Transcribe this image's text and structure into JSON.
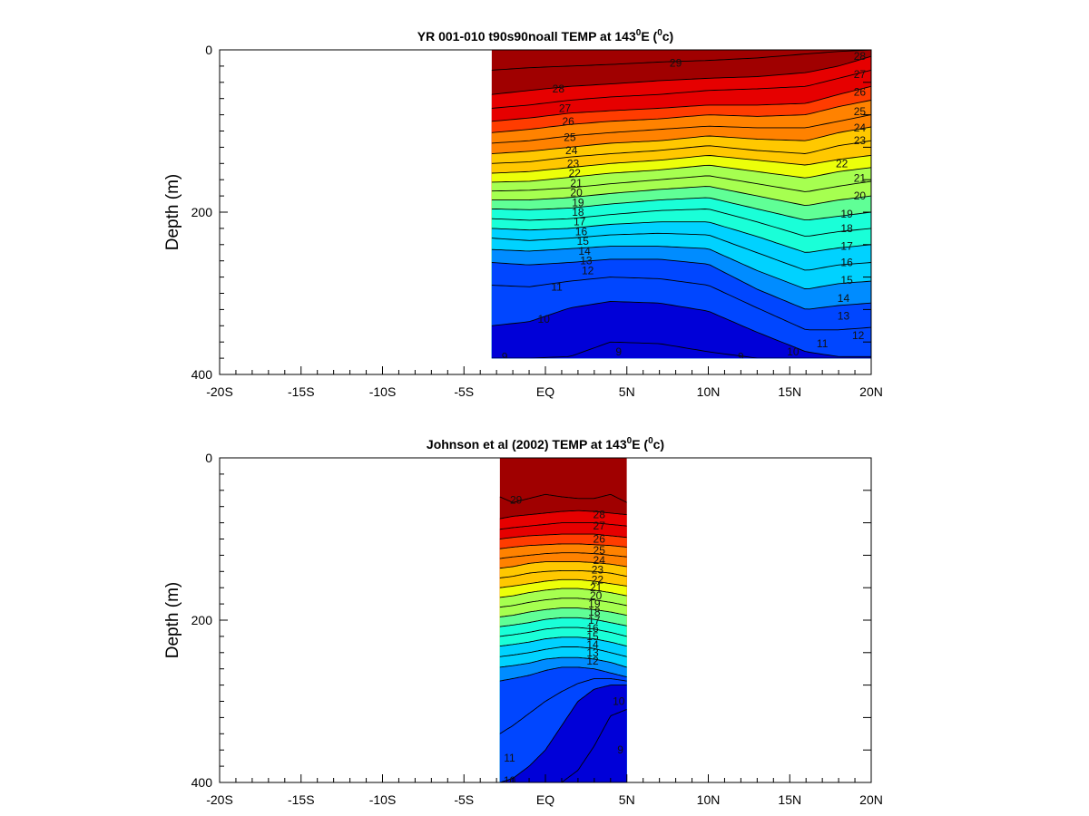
{
  "colors": {
    "scale": [
      "#0000d8",
      "#0046ff",
      "#008cff",
      "#00d2ff",
      "#1affd8",
      "#60ff96",
      "#a6ff50",
      "#ecff0a",
      "#ffc800",
      "#ff8200",
      "#ff3c00",
      "#e60000",
      "#a00000"
    ],
    "contour": "#000000"
  },
  "chart_data": [
    {
      "type": "heatmap",
      "title_main": "YR 001-010 t90s90noall TEMP at 143",
      "title_sup1": "0",
      "title_mid": "E (",
      "title_sup2": "0",
      "title_end": "c)",
      "xlabel": "",
      "ylabel": "Depth (m)",
      "x_ticks": [
        -20,
        -15,
        -10,
        -5,
        0,
        5,
        10,
        15,
        20
      ],
      "x_tick_labels": [
        "-20S",
        "-15S",
        "-10S",
        "-5S",
        "EQ",
        "5N",
        "10N",
        "15N",
        "20N"
      ],
      "y_ticks": [
        0,
        200,
        400
      ],
      "y_tick_labels": [
        "0",
        "200",
        "400"
      ],
      "xlim": [
        -20,
        20
      ],
      "ylim": [
        400,
        0
      ],
      "data_extent": {
        "lat": [
          -3.3,
          20
        ],
        "depth": [
          0,
          380
        ]
      },
      "profile_lats": [
        -3.3,
        -1,
        1.5,
        4,
        7,
        10,
        13,
        16,
        18,
        20
      ],
      "isotherms": [
        {
          "temp": 29,
          "depth": [
            25,
            22,
            20,
            18,
            15,
            13,
            10,
            5,
            2,
            0
          ]
        },
        {
          "temp": 28,
          "depth": [
            55,
            50,
            45,
            42,
            38,
            35,
            33,
            28,
            20,
            8
          ]
        },
        {
          "temp": 27,
          "depth": [
            72,
            68,
            62,
            58,
            55,
            50,
            48,
            45,
            35,
            25
          ]
        },
        {
          "temp": 26,
          "depth": [
            88,
            84,
            78,
            75,
            72,
            68,
            68,
            66,
            55,
            45
          ]
        },
        {
          "temp": 25,
          "depth": [
            102,
            98,
            92,
            88,
            85,
            80,
            82,
            80,
            70,
            62
          ]
        },
        {
          "temp": 24,
          "depth": [
            115,
            112,
            106,
            102,
            98,
            94,
            96,
            96,
            88,
            80
          ]
        },
        {
          "temp": 23,
          "depth": [
            128,
            125,
            120,
            115,
            112,
            106,
            110,
            112,
            102,
            95
          ]
        },
        {
          "temp": 22,
          "depth": [
            140,
            138,
            132,
            128,
            124,
            118,
            124,
            128,
            118,
            112
          ]
        },
        {
          "temp": 21,
          "depth": [
            152,
            150,
            145,
            140,
            136,
            130,
            136,
            142,
            135,
            130
          ]
        },
        {
          "temp": 20,
          "depth": [
            163,
            162,
            157,
            152,
            148,
            142,
            150,
            158,
            150,
            145
          ]
        },
        {
          "temp": 19,
          "depth": [
            174,
            173,
            170,
            165,
            160,
            155,
            165,
            175,
            168,
            162
          ]
        },
        {
          "temp": 18,
          "depth": [
            185,
            185,
            182,
            177,
            172,
            168,
            180,
            192,
            185,
            180
          ]
        },
        {
          "temp": 17,
          "depth": [
            196,
            197,
            195,
            190,
            185,
            182,
            196,
            210,
            205,
            200
          ]
        },
        {
          "temp": 16,
          "depth": [
            208,
            210,
            208,
            203,
            198,
            196,
            212,
            230,
            224,
            220
          ]
        },
        {
          "temp": 15,
          "depth": [
            220,
            222,
            220,
            215,
            212,
            212,
            230,
            250,
            244,
            240
          ]
        },
        {
          "temp": 14,
          "depth": [
            232,
            235,
            232,
            228,
            226,
            228,
            250,
            272,
            265,
            262
          ]
        },
        {
          "temp": 13,
          "depth": [
            246,
            248,
            245,
            242,
            242,
            245,
            272,
            295,
            288,
            285
          ]
        },
        {
          "temp": 12,
          "depth": [
            262,
            265,
            262,
            258,
            258,
            264,
            295,
            320,
            315,
            312
          ]
        },
        {
          "temp": 11,
          "depth": [
            290,
            292,
            285,
            280,
            282,
            290,
            318,
            345,
            345,
            342
          ]
        },
        {
          "temp": 10,
          "depth": [
            340,
            335,
            318,
            310,
            312,
            322,
            348,
            372,
            378,
            378
          ]
        },
        {
          "temp": 9,
          "depth": [
            380,
            380,
            378,
            360,
            362,
            372,
            380,
            380,
            380,
            380
          ]
        }
      ],
      "contour_labels": [
        {
          "text": "29",
          "lat": 8,
          "depth": 16
        },
        {
          "text": "28",
          "lat": 19.3,
          "depth": 8
        },
        {
          "text": "27",
          "lat": 19.3,
          "depth": 30
        },
        {
          "text": "26",
          "lat": 19.3,
          "depth": 52
        },
        {
          "text": "25",
          "lat": 19.3,
          "depth": 76
        },
        {
          "text": "24",
          "lat": 19.3,
          "depth": 96
        },
        {
          "text": "23",
          "lat": 19.3,
          "depth": 112
        },
        {
          "text": "22",
          "lat": 18.2,
          "depth": 140
        },
        {
          "text": "21",
          "lat": 19.3,
          "depth": 158
        },
        {
          "text": "20",
          "lat": 19.3,
          "depth": 180
        },
        {
          "text": "19",
          "lat": 18.5,
          "depth": 202
        },
        {
          "text": "18",
          "lat": 18.5,
          "depth": 220
        },
        {
          "text": "17",
          "lat": 18.5,
          "depth": 242
        },
        {
          "text": "16",
          "lat": 18.5,
          "depth": 262
        },
        {
          "text": "15",
          "lat": 18.5,
          "depth": 284
        },
        {
          "text": "14",
          "lat": 18.3,
          "depth": 306
        },
        {
          "text": "13",
          "lat": 18.3,
          "depth": 328
        },
        {
          "text": "12",
          "lat": 19.2,
          "depth": 352
        },
        {
          "text": "11",
          "lat": 17.0,
          "depth": 362
        },
        {
          "text": "10",
          "lat": 15.2,
          "depth": 372
        },
        {
          "text": "9",
          "lat": 12.0,
          "depth": 378
        },
        {
          "text": "28",
          "lat": 0.8,
          "depth": 48
        },
        {
          "text": "27",
          "lat": 1.2,
          "depth": 72
        },
        {
          "text": "26",
          "lat": 1.4,
          "depth": 88
        },
        {
          "text": "25",
          "lat": 1.5,
          "depth": 108
        },
        {
          "text": "24",
          "lat": 1.6,
          "depth": 124
        },
        {
          "text": "23",
          "lat": 1.7,
          "depth": 140
        },
        {
          "text": "22",
          "lat": 1.8,
          "depth": 152
        },
        {
          "text": "21",
          "lat": 1.9,
          "depth": 164
        },
        {
          "text": "20",
          "lat": 1.9,
          "depth": 176
        },
        {
          "text": "19",
          "lat": 2.0,
          "depth": 188
        },
        {
          "text": "18",
          "lat": 2.0,
          "depth": 200
        },
        {
          "text": "17",
          "lat": 2.1,
          "depth": 212
        },
        {
          "text": "16",
          "lat": 2.2,
          "depth": 224
        },
        {
          "text": "15",
          "lat": 2.3,
          "depth": 236
        },
        {
          "text": "14",
          "lat": 2.4,
          "depth": 248
        },
        {
          "text": "13",
          "lat": 2.5,
          "depth": 260
        },
        {
          "text": "12",
          "lat": 2.6,
          "depth": 272
        },
        {
          "text": "11",
          "lat": 0.7,
          "depth": 292
        },
        {
          "text": "10",
          "lat": -0.1,
          "depth": 332
        },
        {
          "text": "9",
          "lat": 4.5,
          "depth": 372
        },
        {
          "text": "9",
          "lat": -2.5,
          "depth": 378
        }
      ]
    },
    {
      "type": "heatmap",
      "title_main": "Johnson et al (2002) TEMP at 143",
      "title_sup1": "0",
      "title_mid": "E (",
      "title_sup2": "0",
      "title_end": "c)",
      "xlabel": "",
      "ylabel": "Depth (m)",
      "x_ticks": [
        -20,
        -15,
        -10,
        -5,
        0,
        5,
        10,
        15,
        20
      ],
      "x_tick_labels": [
        "-20S",
        "-15S",
        "-10S",
        "-5S",
        "EQ",
        "5N",
        "10N",
        "15N",
        "20N"
      ],
      "y_ticks": [
        0,
        200,
        400
      ],
      "y_tick_labels": [
        "0",
        "200",
        "400"
      ],
      "xlim": [
        -20,
        20
      ],
      "ylim": [
        400,
        0
      ],
      "data_extent": {
        "lat": [
          -2.8,
          5
        ],
        "depth": [
          0,
          400
        ]
      },
      "profile_lats": [
        -2.8,
        -2,
        -1,
        0,
        1,
        2,
        3,
        4,
        5
      ],
      "isotherms": [
        {
          "temp": 29,
          "depth": [
            48,
            55,
            50,
            45,
            48,
            50,
            50,
            45,
            55
          ]
        },
        {
          "temp": 28,
          "depth": [
            75,
            72,
            70,
            68,
            66,
            65,
            66,
            68,
            70
          ]
        },
        {
          "temp": 27,
          "depth": [
            88,
            86,
            84,
            82,
            80,
            80,
            80,
            82,
            84
          ]
        },
        {
          "temp": 26,
          "depth": [
            100,
            98,
            96,
            95,
            94,
            94,
            94,
            96,
            98
          ]
        },
        {
          "temp": 25,
          "depth": [
            112,
            110,
            108,
            107,
            106,
            106,
            107,
            108,
            110
          ]
        },
        {
          "temp": 24,
          "depth": [
            124,
            122,
            120,
            118,
            117,
            117,
            118,
            120,
            122
          ]
        },
        {
          "temp": 23,
          "depth": [
            136,
            134,
            130,
            128,
            128,
            128,
            129,
            131,
            134
          ]
        },
        {
          "temp": 22,
          "depth": [
            148,
            146,
            142,
            140,
            139,
            139,
            140,
            142,
            146
          ]
        },
        {
          "temp": 21,
          "depth": [
            160,
            158,
            155,
            152,
            150,
            150,
            152,
            155,
            158
          ]
        },
        {
          "temp": 20,
          "depth": [
            172,
            170,
            166,
            163,
            161,
            161,
            163,
            166,
            170
          ]
        },
        {
          "temp": 19,
          "depth": [
            184,
            182,
            178,
            175,
            173,
            173,
            175,
            178,
            182
          ]
        },
        {
          "temp": 18,
          "depth": [
            196,
            194,
            190,
            187,
            185,
            185,
            187,
            190,
            194
          ]
        },
        {
          "temp": 17,
          "depth": [
            208,
            206,
            203,
            199,
            197,
            197,
            199,
            203,
            207
          ]
        },
        {
          "temp": 16,
          "depth": [
            220,
            218,
            215,
            211,
            209,
            209,
            211,
            215,
            220
          ]
        },
        {
          "temp": 15,
          "depth": [
            232,
            230,
            227,
            223,
            221,
            221,
            223,
            227,
            232
          ]
        },
        {
          "temp": 14,
          "depth": [
            245,
            243,
            240,
            236,
            233,
            233,
            235,
            240,
            245
          ]
        },
        {
          "temp": 13,
          "depth": [
            258,
            256,
            253,
            248,
            246,
            246,
            248,
            252,
            258
          ]
        },
        {
          "temp": 12,
          "depth": [
            275,
            272,
            268,
            262,
            258,
            258,
            260,
            265,
            270
          ]
        },
        {
          "temp": 11,
          "depth": [
            340,
            330,
            315,
            300,
            288,
            278,
            272,
            272,
            275
          ]
        },
        {
          "temp": 10,
          "depth": [
            400,
            395,
            380,
            360,
            330,
            300,
            285,
            280,
            280
          ]
        },
        {
          "temp": 9,
          "depth": [
            400,
            400,
            400,
            400,
            400,
            385,
            355,
            318,
            310
          ]
        }
      ],
      "contour_labels": [
        {
          "text": "29",
          "lat": -1.8,
          "depth": 52
        },
        {
          "text": "28",
          "lat": 3.3,
          "depth": 70
        },
        {
          "text": "27",
          "lat": 3.3,
          "depth": 84
        },
        {
          "text": "26",
          "lat": 3.3,
          "depth": 100
        },
        {
          "text": "25",
          "lat": 3.3,
          "depth": 114
        },
        {
          "text": "24",
          "lat": 3.3,
          "depth": 126
        },
        {
          "text": "23",
          "lat": 3.2,
          "depth": 138
        },
        {
          "text": "22",
          "lat": 3.2,
          "depth": 150
        },
        {
          "text": "21",
          "lat": 3.1,
          "depth": 160
        },
        {
          "text": "20",
          "lat": 3.1,
          "depth": 170
        },
        {
          "text": "19",
          "lat": 3.0,
          "depth": 180
        },
        {
          "text": "18",
          "lat": 3.0,
          "depth": 190
        },
        {
          "text": "17",
          "lat": 3.0,
          "depth": 200
        },
        {
          "text": "16",
          "lat": 2.9,
          "depth": 210
        },
        {
          "text": "15",
          "lat": 2.9,
          "depth": 220
        },
        {
          "text": "14",
          "lat": 2.9,
          "depth": 230
        },
        {
          "text": "13",
          "lat": 2.9,
          "depth": 240
        },
        {
          "text": "12",
          "lat": 2.9,
          "depth": 250
        },
        {
          "text": "10",
          "lat": 4.5,
          "depth": 300
        },
        {
          "text": "9",
          "lat": 4.6,
          "depth": 360
        },
        {
          "text": "11",
          "lat": -2.2,
          "depth": 370
        },
        {
          "text": "10",
          "lat": -2.2,
          "depth": 398
        }
      ]
    }
  ]
}
